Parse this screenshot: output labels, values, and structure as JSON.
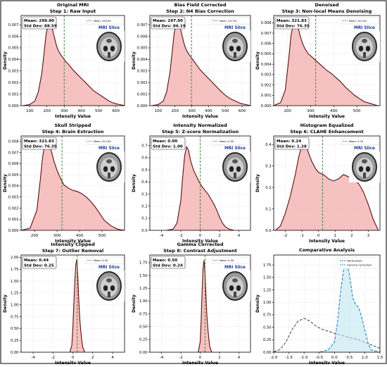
{
  "figure": {
    "border_color": "#000000",
    "kde_fill": "#f4b6b6",
    "kde_line": "#5a0f0f",
    "mean_line": "#2e7d32",
    "mri_label_color": "#1a3d9a"
  },
  "chart_data": [
    {
      "type": "area",
      "title": "Original MRI",
      "subtitle": "Step 1: Raw Input",
      "xlabel": "Intensity Value",
      "ylabel": "Density",
      "xlim": [
        50,
        650
      ],
      "ylim": [
        0,
        0.0078
      ],
      "xticks": [
        100,
        200,
        300,
        400,
        500,
        600
      ],
      "xtick_labels": [
        "100",
        "200",
        "300",
        "400",
        "500",
        "600"
      ],
      "yticks": [
        0,
        0.001,
        0.002,
        0.003,
        0.004,
        0.005,
        0.006,
        0.007
      ],
      "ytick_labels": [
        "0.000",
        "0.001",
        "0.002",
        "0.003",
        "0.004",
        "0.005",
        "0.006",
        "0.007"
      ],
      "stats_mean": "Mean: 299.90",
      "stats_std": "Std Dev: 88.59",
      "legend": "Mean: 299.90",
      "mri_label": "MRI Slice",
      "mean": 299.9,
      "x": [
        60,
        100,
        130,
        150,
        170,
        185,
        195,
        205,
        215,
        225,
        235,
        245,
        255,
        265,
        280,
        295,
        310,
        330,
        350,
        370,
        390,
        410,
        430,
        450,
        470,
        500,
        530,
        560,
        590,
        620,
        650
      ],
      "y": [
        0,
        0.0001,
        0.0004,
        0.0012,
        0.0028,
        0.0048,
        0.0062,
        0.0069,
        0.0073,
        0.0071,
        0.0064,
        0.0058,
        0.0052,
        0.0048,
        0.0044,
        0.0041,
        0.0038,
        0.0035,
        0.0031,
        0.0028,
        0.0025,
        0.0022,
        0.0019,
        0.0016,
        0.0013,
        0.001,
        0.0007,
        0.0004,
        0.0002,
        0.0001,
        0
      ]
    },
    {
      "type": "area",
      "title": "Bias Field Corrected",
      "subtitle": "Step 2: N4 Bias Correction",
      "xlabel": "Intensity Value",
      "ylabel": "Density",
      "xlim": [
        50,
        650
      ],
      "ylim": [
        0,
        0.0078
      ],
      "xticks": [
        100,
        200,
        300,
        400,
        500,
        600
      ],
      "xtick_labels": [
        "100",
        "200",
        "300",
        "400",
        "500",
        "600"
      ],
      "yticks": [
        0,
        0.001,
        0.002,
        0.003,
        0.004,
        0.005,
        0.006,
        0.007
      ],
      "ytick_labels": [
        "0.000",
        "0.001",
        "0.002",
        "0.003",
        "0.004",
        "0.005",
        "0.006",
        "0.007"
      ],
      "stats_mean": "Mean: 297.90",
      "stats_std": "Std Dev: 86.19",
      "legend": "Mean: 297.90",
      "mri_label": "MRI Slice",
      "mean": 297.9,
      "x": [
        60,
        100,
        130,
        150,
        170,
        185,
        195,
        205,
        215,
        225,
        235,
        245,
        255,
        265,
        280,
        295,
        310,
        330,
        350,
        370,
        390,
        410,
        430,
        450,
        470,
        500,
        530,
        560,
        590,
        620,
        650
      ],
      "y": [
        0,
        0.0001,
        0.0004,
        0.0012,
        0.0029,
        0.0049,
        0.0063,
        0.007,
        0.0074,
        0.0072,
        0.0065,
        0.0059,
        0.0053,
        0.0049,
        0.0045,
        0.0042,
        0.0039,
        0.0035,
        0.0031,
        0.0028,
        0.0025,
        0.0022,
        0.0019,
        0.0016,
        0.0013,
        0.0009,
        0.0006,
        0.0004,
        0.0002,
        0.0001,
        0
      ]
    },
    {
      "type": "area",
      "title": "Denoised",
      "subtitle": "Step 3: Non-local Means Denoising",
      "xlabel": "Intensity Value",
      "ylabel": "Density",
      "xlim": [
        140,
        600
      ],
      "ylim": [
        0,
        0.0087
      ],
      "xticks": [
        200,
        300,
        400,
        500
      ],
      "xtick_labels": [
        "200",
        "300",
        "400",
        "500"
      ],
      "yticks": [
        0,
        0.001,
        0.002,
        0.003,
        0.004,
        0.005,
        0.006,
        0.007,
        0.008
      ],
      "ytick_labels": [
        "0.000",
        "0.001",
        "0.002",
        "0.003",
        "0.004",
        "0.005",
        "0.006",
        "0.007",
        "0.008"
      ],
      "stats_mean": "Mean: 321.83",
      "stats_std": "Std Dev: 76.35",
      "legend": "Mean: 321.83",
      "mri_label": "MRI Slice",
      "mean": 321.83,
      "x": [
        140,
        170,
        190,
        205,
        215,
        225,
        235,
        245,
        255,
        265,
        275,
        290,
        310,
        330,
        350,
        370,
        390,
        410,
        430,
        450,
        470,
        490,
        510,
        530,
        560,
        590,
        600
      ],
      "y": [
        0,
        0.0003,
        0.0015,
        0.0045,
        0.0068,
        0.0079,
        0.0081,
        0.0076,
        0.0067,
        0.006,
        0.0055,
        0.005,
        0.0046,
        0.0042,
        0.0038,
        0.0034,
        0.0031,
        0.0027,
        0.0023,
        0.0018,
        0.0014,
        0.001,
        0.0007,
        0.0004,
        0.0002,
        0,
        0
      ]
    },
    {
      "type": "area",
      "title": "Skull Stripped",
      "subtitle": "Step 4: Brain Extraction",
      "xlabel": "Intensity Value",
      "ylabel": "Density",
      "xlim": [
        140,
        600
      ],
      "ylim": [
        0,
        0.0085
      ],
      "xticks": [
        200,
        300,
        400,
        500
      ],
      "xtick_labels": [
        "200",
        "300",
        "400",
        "500"
      ],
      "yticks": [
        0,
        0.001,
        0.002,
        0.003,
        0.004,
        0.005,
        0.006,
        0.007,
        0.008
      ],
      "ytick_labels": [
        "0.000",
        "0.001",
        "0.002",
        "0.003",
        "0.004",
        "0.005",
        "0.006",
        "0.007",
        "0.008"
      ],
      "stats_mean": "Mean: 321.83",
      "stats_std": "Std Dev: 76.35",
      "legend": "Mean: 321.83",
      "mri_label": "MRI Slice",
      "mean": 321.83,
      "x": [
        140,
        180,
        210,
        225,
        235,
        245,
        255,
        265,
        275,
        285,
        300,
        315,
        330,
        350,
        370,
        390,
        410,
        430,
        450,
        470,
        490,
        510,
        540,
        570,
        600
      ],
      "y": [
        0,
        0.0002,
        0.0018,
        0.0045,
        0.0065,
        0.0078,
        0.0081,
        0.0078,
        0.0071,
        0.0063,
        0.0054,
        0.0047,
        0.0041,
        0.0038,
        0.0036,
        0.0035,
        0.0033,
        0.003,
        0.0026,
        0.0021,
        0.0015,
        0.0009,
        0.0004,
        0.0001,
        0
      ]
    },
    {
      "type": "area",
      "title": "Intensity Normalized",
      "subtitle": "Step 5: Z-score Normalization",
      "xlabel": "Intensity Value",
      "ylabel": "Density",
      "xlim": [
        -5.2,
        5.2
      ],
      "ylim": [
        0,
        0.78
      ],
      "xticks": [
        -4,
        -2,
        0,
        2,
        4
      ],
      "xtick_labels": [
        "-4",
        "-2",
        "0",
        "2",
        "4"
      ],
      "yticks": [
        0,
        0.1,
        0.2,
        0.3,
        0.4,
        0.5,
        0.6,
        0.7
      ],
      "ytick_labels": [
        "0.0",
        "0.1",
        "0.2",
        "0.3",
        "0.4",
        "0.5",
        "0.6",
        "0.7"
      ],
      "stats_mean": "Mean: 0.00",
      "stats_std": "Std Dev: 1.00",
      "legend": "Mean: 0.00",
      "mri_label": "MRI Slice",
      "mean": 0.0,
      "x": [
        -3.5,
        -2.8,
        -2.4,
        -2.0,
        -1.8,
        -1.6,
        -1.4,
        -1.2,
        -1.0,
        -0.7,
        -0.4,
        -0.1,
        0.2,
        0.5,
        0.8,
        1.1,
        1.4,
        1.7,
        2.0,
        2.3,
        2.6,
        3.0,
        3.5
      ],
      "y": [
        0,
        0.01,
        0.06,
        0.25,
        0.45,
        0.62,
        0.69,
        0.66,
        0.58,
        0.5,
        0.45,
        0.4,
        0.36,
        0.33,
        0.3,
        0.26,
        0.22,
        0.17,
        0.11,
        0.06,
        0.03,
        0.01,
        0
      ]
    },
    {
      "type": "area",
      "title": "Histogram Equalized",
      "subtitle": "Step 6: CLAHE Enhancement",
      "xlabel": "Intensity Value",
      "ylabel": "Density",
      "xlim": [
        -2.7,
        3.7
      ],
      "ylim": [
        0,
        0.44
      ],
      "xticks": [
        -2,
        -1,
        0,
        1,
        2,
        3
      ],
      "xtick_labels": [
        "-2",
        "-1",
        "0",
        "1",
        "2",
        "3"
      ],
      "yticks": [
        0,
        0.1,
        0.2,
        0.3,
        0.4
      ],
      "ytick_labels": [
        "0.0",
        "0.1",
        "0.2",
        "0.3",
        "0.4"
      ],
      "stats_mean": "Mean: 0.24",
      "stats_std": "Std Dev: 1.28",
      "legend": "Mean: 0.24",
      "mri_label": "MRI Slice",
      "mean": 0.24,
      "x": [
        -2.6,
        -2.3,
        -2.0,
        -1.7,
        -1.4,
        -1.2,
        -1.0,
        -0.8,
        -0.6,
        -0.4,
        -0.2,
        0.0,
        0.3,
        0.6,
        0.9,
        1.2,
        1.5,
        1.8,
        2.1,
        2.4,
        2.7,
        3.0,
        3.3,
        3.6
      ],
      "y": [
        0,
        0.02,
        0.08,
        0.16,
        0.26,
        0.34,
        0.4,
        0.41,
        0.36,
        0.32,
        0.29,
        0.27,
        0.26,
        0.24,
        0.23,
        0.24,
        0.26,
        0.25,
        0.23,
        0.22,
        0.18,
        0.12,
        0.05,
        0
      ]
    },
    {
      "type": "area",
      "title": "Intensity Clipped",
      "subtitle": "Step 7: Outlier Removal",
      "xlabel": "Intensity Value",
      "ylabel": "Density",
      "xlim": [
        -5.2,
        5.2
      ],
      "ylim": [
        0,
        2.05
      ],
      "xticks": [
        -4,
        -2,
        0,
        2,
        4
      ],
      "xtick_labels": [
        "-4",
        "-2",
        "0",
        "2",
        "4"
      ],
      "yticks": [
        0,
        0.25,
        0.5,
        0.75,
        1.0,
        1.25,
        1.5,
        1.75,
        2.0
      ],
      "ytick_labels": [
        "0.00",
        "0.25",
        "0.50",
        "0.75",
        "1.00",
        "1.25",
        "1.50",
        "1.75",
        "2.00"
      ],
      "stats_mean": "Mean: 0.44",
      "stats_std": "Std Dev: 0.25",
      "legend": "Mean: 0.44",
      "mri_label": "MRI Slice",
      "mean": 0.44,
      "x": [
        -0.3,
        -0.1,
        0.0,
        0.1,
        0.2,
        0.3,
        0.4,
        0.5,
        0.6,
        0.7,
        0.8,
        0.9,
        1.0,
        1.2
      ],
      "y": [
        0,
        0.15,
        0.5,
        1.0,
        1.5,
        1.85,
        1.95,
        1.6,
        1.1,
        0.7,
        0.45,
        0.25,
        0.1,
        0
      ]
    },
    {
      "type": "area",
      "title": "Gamma Corrected",
      "subtitle": "Step 8: Contrast Adjustment",
      "xlabel": "Intensity Value",
      "ylabel": "Density",
      "xlim": [
        -5.2,
        5.2
      ],
      "ylim": [
        0,
        1.9
      ],
      "xticks": [
        -4,
        -2,
        0,
        2,
        4
      ],
      "xtick_labels": [
        "-4",
        "-2",
        "0",
        "2",
        "4"
      ],
      "yticks": [
        0,
        0.25,
        0.5,
        0.75,
        1.0,
        1.25,
        1.5,
        1.75
      ],
      "ytick_labels": [
        "0.00",
        "0.25",
        "0.50",
        "0.75",
        "1.00",
        "1.25",
        "1.50",
        "1.75"
      ],
      "stats_mean": "Mean: 0.50",
      "stats_std": "Std Dev: 0.24",
      "legend": "Mean: 0.50",
      "mri_label": "MRI Slice",
      "mean": 0.5,
      "x": [
        -0.2,
        0.0,
        0.1,
        0.2,
        0.3,
        0.4,
        0.5,
        0.6,
        0.7,
        0.8,
        0.9,
        1.0,
        1.2
      ],
      "y": [
        0,
        0.2,
        0.6,
        1.2,
        1.65,
        1.8,
        1.55,
        1.1,
        0.7,
        0.45,
        0.25,
        0.1,
        0
      ]
    },
    {
      "type": "line",
      "title": "Comparative Analysis",
      "xlabel": "Intensity Value",
      "ylabel": "Density",
      "xlim": [
        -2.0,
        1.5
      ],
      "ylim": [
        0,
        1.95
      ],
      "xticks": [
        -2.0,
        -1.5,
        -1.0,
        -0.5,
        0.0,
        0.5,
        1.0,
        1.5
      ],
      "xtick_labels": [
        "-2.0",
        "-1.5",
        "-1.0",
        "-0.5",
        "0.0",
        "0.5",
        "1.0",
        "1.5"
      ],
      "yticks": [
        0,
        0.25,
        0.5,
        0.75,
        1.0,
        1.25,
        1.5,
        1.75
      ],
      "ytick_labels": [
        "0.00",
        "0.25",
        "0.50",
        "0.75",
        "1.00",
        "1.25",
        "1.50",
        "1.75"
      ],
      "series": [
        {
          "name": "Normalized",
          "color": "#555555",
          "x": [
            -2.0,
            -1.8,
            -1.6,
            -1.4,
            -1.2,
            -1.0,
            -0.8,
            -0.6,
            -0.4,
            -0.2,
            0.0,
            0.2,
            0.4,
            0.6,
            0.8,
            1.0,
            1.2,
            1.5
          ],
          "y": [
            0.01,
            0.05,
            0.2,
            0.45,
            0.62,
            0.68,
            0.62,
            0.52,
            0.46,
            0.42,
            0.38,
            0.35,
            0.31,
            0.28,
            0.25,
            0.2,
            0.15,
            0.08
          ]
        },
        {
          "name": "Gamma Corrected",
          "color": "#1e88c8",
          "x": [
            -2.0,
            -0.5,
            -0.2,
            0.0,
            0.1,
            0.2,
            0.3,
            0.4,
            0.5,
            0.6,
            0.7,
            0.8,
            0.9,
            1.0,
            1.1,
            1.2,
            1.5
          ],
          "y": [
            0,
            0,
            0.05,
            0.2,
            0.6,
            1.2,
            1.65,
            1.8,
            1.55,
            1.1,
            0.95,
            0.9,
            0.7,
            0.45,
            0.2,
            0.05,
            0
          ]
        }
      ]
    }
  ]
}
